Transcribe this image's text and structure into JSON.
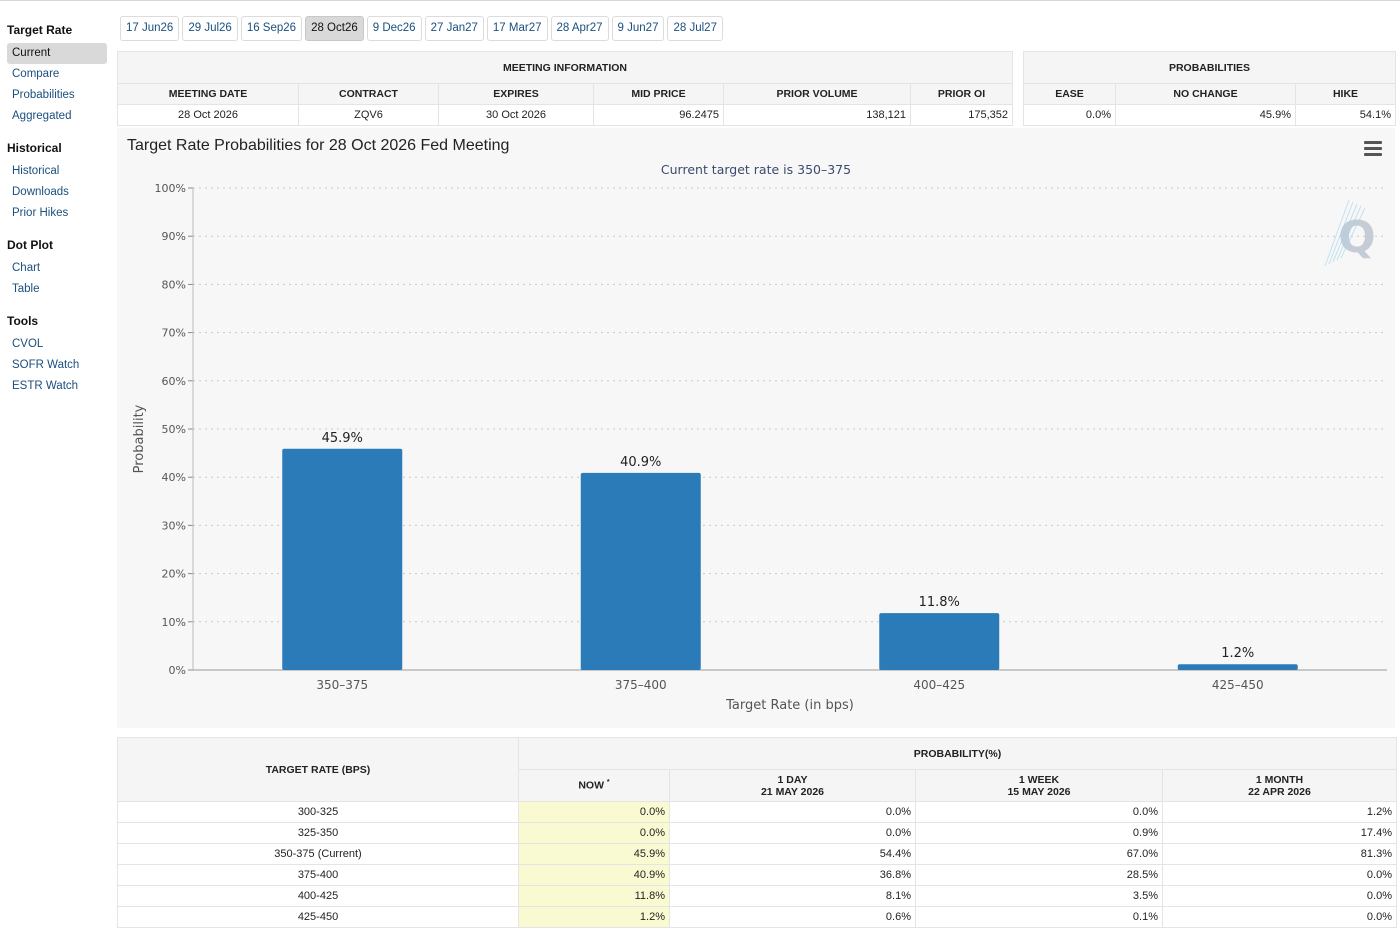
{
  "sidebar": {
    "groups": [
      {
        "title": "Target Rate",
        "items": [
          "Current",
          "Compare",
          "Probabilities",
          "Aggregated"
        ]
      },
      {
        "title": "Historical",
        "items": [
          "Historical",
          "Downloads",
          "Prior Hikes"
        ]
      },
      {
        "title": "Dot Plot",
        "items": [
          "Chart",
          "Table"
        ]
      },
      {
        "title": "Tools",
        "items": [
          "CVOL",
          "SOFR Watch",
          "ESTR Watch"
        ]
      }
    ],
    "active_item": "Current"
  },
  "tabs": {
    "items": [
      "17 Jun26",
      "29 Jul26",
      "16 Sep26",
      "28 Oct26",
      "9 Dec26",
      "27 Jan27",
      "17 Mar27",
      "28 Apr27",
      "9 Jun27",
      "28 Jul27"
    ],
    "active": "28 Oct26"
  },
  "meeting_info": {
    "title": "MEETING INFORMATION",
    "headers": [
      "MEETING DATE",
      "CONTRACT",
      "EXPIRES",
      "MID PRICE",
      "PRIOR VOLUME",
      "PRIOR OI"
    ],
    "values": [
      "28 Oct 2026",
      "ZQV6",
      "30 Oct 2026",
      "96.2475",
      "138,121",
      "175,352"
    ]
  },
  "probabilities": {
    "title": "PROBABILITIES",
    "headers": [
      "EASE",
      "NO CHANGE",
      "HIKE"
    ],
    "values": [
      "0.0%",
      "45.9%",
      "54.1%"
    ]
  },
  "chart": {
    "title": "Target Rate Probabilities for 28 Oct 2026 Fed Meeting",
    "subtitle": "Current target rate is 350–375",
    "watermark": "Q",
    "menu_icon": "hamburger-menu-icon"
  },
  "chart_data": {
    "type": "bar",
    "title": "Target Rate Probabilities for 28 Oct 2026 Fed Meeting",
    "subtitle": "Current target rate is 350–375",
    "categories": [
      "350–375",
      "375–400",
      "400–425",
      "425–450"
    ],
    "values": [
      45.9,
      40.9,
      11.8,
      1.2
    ],
    "data_labels": [
      "45.9%",
      "40.9%",
      "11.8%",
      "1.2%"
    ],
    "xlabel": "Target Rate (in bps)",
    "ylabel": "Probability",
    "ylim": [
      0,
      100
    ],
    "yticks": [
      "0%",
      "10%",
      "20%",
      "30%",
      "40%",
      "50%",
      "60%",
      "70%",
      "80%",
      "90%",
      "100%"
    ],
    "grid": true,
    "bar_color": "#2b7bb9"
  },
  "prob_table": {
    "col0_header": "TARGET RATE (BPS)",
    "group_header": "PROBABILITY(%)",
    "headers": [
      {
        "line1": "NOW",
        "line2": "",
        "mark": "*"
      },
      {
        "line1": "1 DAY",
        "line2": "21 MAY 2026"
      },
      {
        "line1": "1 WEEK",
        "line2": "15 MAY 2026"
      },
      {
        "line1": "1 MONTH",
        "line2": "22 APR 2026"
      }
    ],
    "rows": [
      {
        "rate": "300-325",
        "now": "0.0%",
        "day": "0.0%",
        "week": "0.0%",
        "month": "1.2%"
      },
      {
        "rate": "325-350",
        "now": "0.0%",
        "day": "0.0%",
        "week": "0.9%",
        "month": "17.4%"
      },
      {
        "rate": "350-375 (Current)",
        "now": "45.9%",
        "day": "54.4%",
        "week": "67.0%",
        "month": "81.3%"
      },
      {
        "rate": "375-400",
        "now": "40.9%",
        "day": "36.8%",
        "week": "28.5%",
        "month": "0.0%"
      },
      {
        "rate": "400-425",
        "now": "11.8%",
        "day": "8.1%",
        "week": "3.5%",
        "month": "0.0%"
      },
      {
        "rate": "425-450",
        "now": "1.2%",
        "day": "0.6%",
        "week": "0.1%",
        "month": "0.0%"
      }
    ]
  },
  "colors": {
    "accent": "#2b7bb9",
    "link": "#1a4f7e",
    "now_highlight": "#fafad2"
  }
}
